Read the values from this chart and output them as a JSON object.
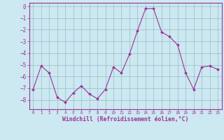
{
  "x": [
    0,
    1,
    2,
    3,
    4,
    5,
    6,
    7,
    8,
    9,
    10,
    11,
    12,
    13,
    14,
    15,
    16,
    17,
    18,
    19,
    20,
    21,
    22,
    23
  ],
  "y": [
    -7.1,
    -5.1,
    -5.7,
    -7.8,
    -8.2,
    -7.4,
    -6.8,
    -7.5,
    -7.9,
    -7.1,
    -5.2,
    -5.7,
    -4.1,
    -2.1,
    -0.2,
    -0.2,
    -2.2,
    -2.6,
    -3.3,
    -5.7,
    -7.1,
    -5.2,
    -5.1,
    -5.4
  ],
  "line_color": "#993399",
  "marker_color": "#993399",
  "bg_color": "#cce8f0",
  "grid_color": "#99bbcc",
  "xlabel": "Windchill (Refroidissement éolien,°C)",
  "xlabel_color": "#993399",
  "ylim": [
    -8.8,
    0.3
  ],
  "yticks": [
    0,
    -1,
    -2,
    -3,
    -4,
    -5,
    -6,
    -7,
    -8
  ],
  "xtick_labels": [
    "0",
    "1",
    "2",
    "3",
    "4",
    "5",
    "6",
    "7",
    "8",
    "9",
    "10",
    "11",
    "12",
    "13",
    "14",
    "15",
    "16",
    "17",
    "18",
    "19",
    "20",
    "21",
    "22",
    "23"
  ],
  "tick_color": "#993399",
  "spine_color": "#993399"
}
